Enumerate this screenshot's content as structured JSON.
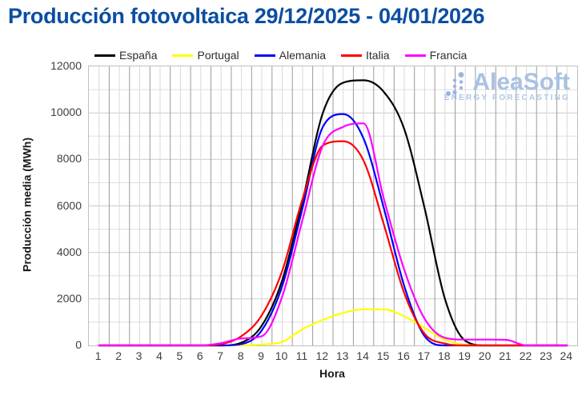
{
  "page_title": "Producción fotovoltaica 29/12/2025 - 04/01/2026",
  "watermark": {
    "brand": "AleaSoft",
    "tagline": "ENERGY FORECASTING"
  },
  "chart_data": {
    "type": "line",
    "title": "Producción fotovoltaica 29/12/2025 - 04/01/2026",
    "xlabel": "Hora",
    "ylabel": "Producción media (MWh)",
    "x": [
      1,
      2,
      3,
      4,
      5,
      6,
      7,
      8,
      9,
      10,
      11,
      12,
      13,
      14,
      15,
      16,
      17,
      18,
      19,
      20,
      21,
      22,
      23,
      24
    ],
    "xlim": [
      0.5,
      24.5
    ],
    "ylim": [
      0,
      12000
    ],
    "y_tick_step": 2000,
    "y_gridline_step": 1000,
    "grid": true,
    "legend_position": "top",
    "series": [
      {
        "name": "España",
        "color": "#000000",
        "values": [
          0,
          0,
          0,
          0,
          0,
          0,
          0,
          120,
          850,
          2800,
          6200,
          10000,
          11300,
          11400,
          10900,
          9300,
          5900,
          2000,
          200,
          0,
          0,
          0,
          0,
          0
        ]
      },
      {
        "name": "Portugal",
        "color": "#FFFF00",
        "values": [
          0,
          0,
          0,
          0,
          0,
          0,
          0,
          0,
          40,
          150,
          700,
          1100,
          1400,
          1550,
          1550,
          1250,
          750,
          250,
          30,
          0,
          0,
          0,
          0,
          0
        ]
      },
      {
        "name": "Alemania",
        "color": "#0000FF",
        "values": [
          0,
          0,
          0,
          0,
          0,
          0,
          0,
          60,
          650,
          2550,
          5900,
          9400,
          9950,
          8900,
          5900,
          2550,
          400,
          0,
          0,
          0,
          0,
          0,
          0,
          0
        ]
      },
      {
        "name": "Italia",
        "color": "#FF0000",
        "values": [
          0,
          0,
          0,
          0,
          0,
          0,
          60,
          400,
          1300,
          3200,
          6300,
          8600,
          8780,
          7950,
          5200,
          2250,
          500,
          80,
          0,
          0,
          0,
          0,
          0,
          0
        ]
      },
      {
        "name": "Francia",
        "color": "#FF00FF",
        "values": [
          0,
          0,
          0,
          0,
          0,
          0,
          100,
          300,
          400,
          2100,
          5400,
          8600,
          9400,
          9550,
          6300,
          3250,
          1150,
          330,
          250,
          250,
          240,
          0,
          0,
          0
        ]
      }
    ]
  },
  "colors": {
    "title": "#0B4EA2",
    "frame": "#BFBFBF",
    "tick": "#3F3F3F",
    "gridHMajor": "#CBCBCB",
    "gridHMinor": "#DEDEDE",
    "gridVMajor": "#9B9B9B",
    "gridVMinor": "#D9D9D9",
    "wmBrand": "#A9C1E3",
    "wmDots": "#97B4DC",
    "wmTag": "#AEC6E6"
  }
}
